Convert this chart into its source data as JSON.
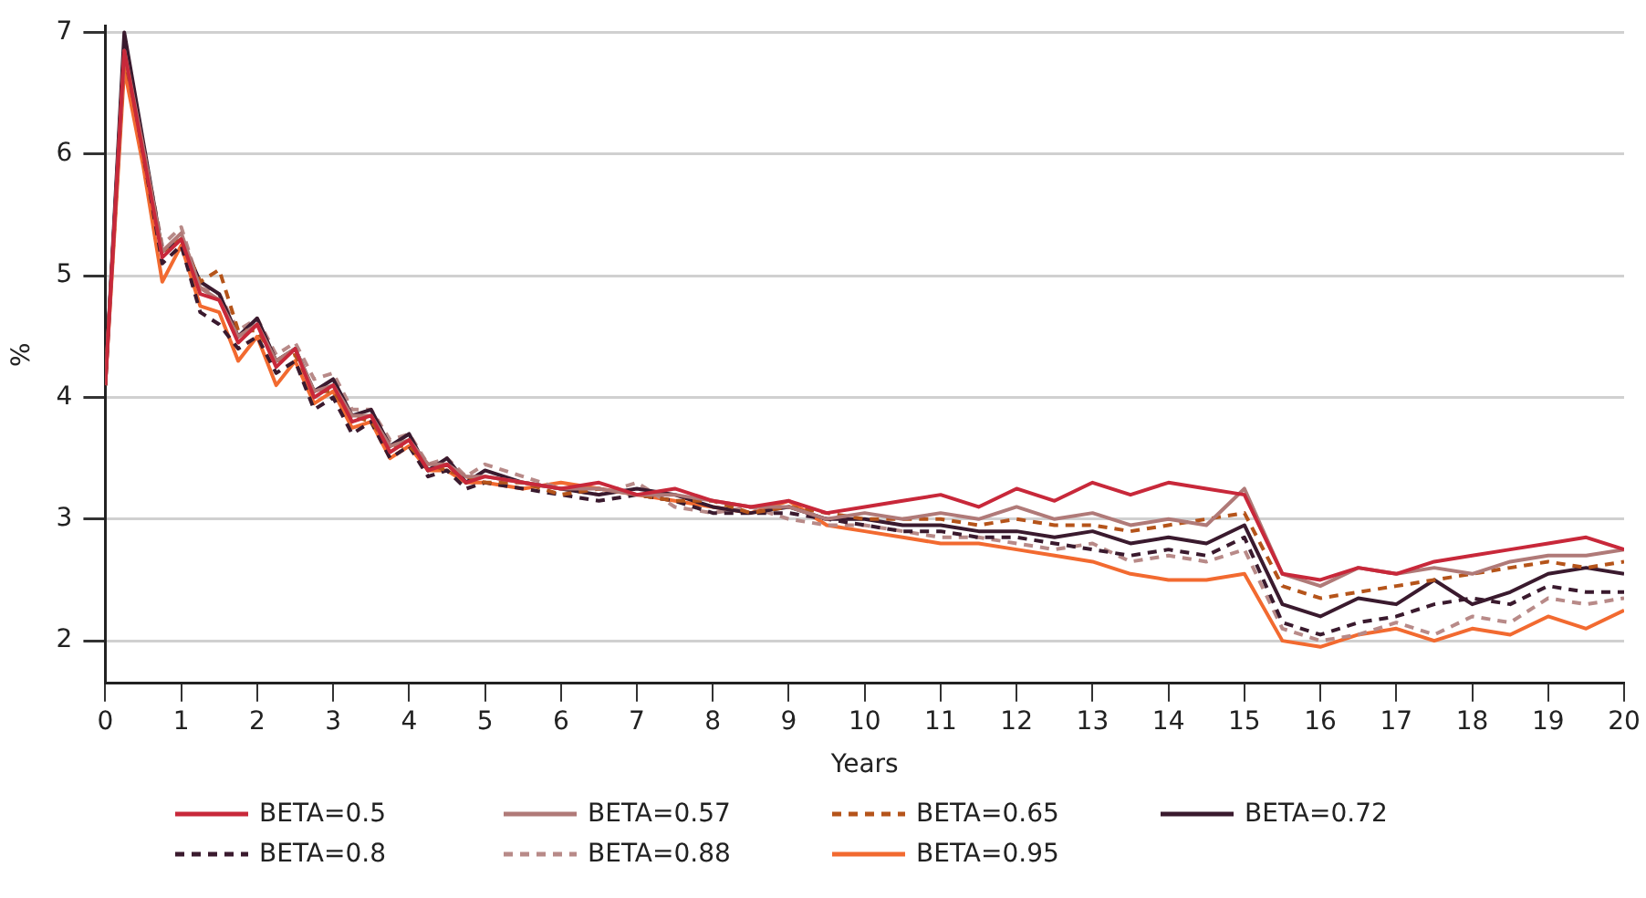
{
  "chart_data": {
    "type": "line",
    "xlabel": "Years",
    "ylabel": "%",
    "x": [
      0,
      0.25,
      0.5,
      0.75,
      1,
      1.25,
      1.5,
      1.75,
      2,
      2.25,
      2.5,
      2.75,
      3,
      3.25,
      3.5,
      3.75,
      4,
      4.25,
      4.5,
      4.75,
      5,
      5.5,
      6,
      6.5,
      7,
      7.5,
      8,
      8.5,
      9,
      9.5,
      10,
      10.5,
      11,
      11.5,
      12,
      12.5,
      13,
      13.5,
      14,
      14.5,
      15,
      15.5,
      16,
      16.5,
      17,
      17.5,
      18,
      18.5,
      19,
      19.5,
      20
    ],
    "xlim": [
      0,
      20
    ],
    "xticks": [
      0,
      1,
      2,
      3,
      4,
      5,
      6,
      7,
      8,
      9,
      10,
      11,
      12,
      13,
      14,
      15,
      16,
      17,
      18,
      19,
      20
    ],
    "ylim": [
      1.65,
      7.05
    ],
    "yticks": [
      2,
      3,
      4,
      5,
      6,
      7
    ],
    "grid": "y",
    "legend": "bottom",
    "marker": "none",
    "series": [
      {
        "name": "BETA=0.5",
        "color": "#c8283a",
        "line_style": "solid",
        "values": [
          4.1,
          6.85,
          6.0,
          5.15,
          5.3,
          4.85,
          4.8,
          4.45,
          4.6,
          4.25,
          4.4,
          4.0,
          4.1,
          3.8,
          3.85,
          3.55,
          3.65,
          3.4,
          3.45,
          3.3,
          3.35,
          3.3,
          3.25,
          3.3,
          3.2,
          3.25,
          3.15,
          3.1,
          3.15,
          3.05,
          3.1,
          3.15,
          3.2,
          3.1,
          3.25,
          3.15,
          3.3,
          3.2,
          3.3,
          3.25,
          3.2,
          2.55,
          2.5,
          2.6,
          2.55,
          2.65,
          2.7,
          2.75,
          2.8,
          2.85,
          2.75
        ]
      },
      {
        "name": "BETA=0.57",
        "color": "#b07a78",
        "line_style": "solid",
        "values": [
          4.1,
          6.85,
          6.05,
          5.2,
          5.35,
          4.9,
          4.8,
          4.5,
          4.6,
          4.3,
          4.4,
          4.05,
          4.1,
          3.85,
          3.85,
          3.6,
          3.65,
          3.45,
          3.45,
          3.35,
          3.35,
          3.3,
          3.25,
          3.25,
          3.2,
          3.2,
          3.15,
          3.1,
          3.1,
          3.0,
          3.05,
          3.0,
          3.05,
          3.0,
          3.1,
          3.0,
          3.05,
          2.95,
          3.0,
          2.95,
          3.25,
          2.55,
          2.45,
          2.6,
          2.55,
          2.6,
          2.55,
          2.65,
          2.7,
          2.7,
          2.75
        ]
      },
      {
        "name": "BETA=0.65",
        "color": "#b5541a",
        "line_style": "dashed",
        "values": [
          4.1,
          6.8,
          6.05,
          5.2,
          5.3,
          4.95,
          5.05,
          4.55,
          4.55,
          4.3,
          4.35,
          4.05,
          4.05,
          3.85,
          3.8,
          3.6,
          3.6,
          3.45,
          3.4,
          3.35,
          3.3,
          3.3,
          3.2,
          3.25,
          3.2,
          3.15,
          3.15,
          3.05,
          3.1,
          3.05,
          3.0,
          3.0,
          3.0,
          2.95,
          3.0,
          2.95,
          2.95,
          2.9,
          2.95,
          3.0,
          3.05,
          2.45,
          2.35,
          2.4,
          2.45,
          2.5,
          2.55,
          2.6,
          2.65,
          2.6,
          2.65
        ]
      },
      {
        "name": "BETA=0.72",
        "color": "#3a1a2e",
        "line_style": "solid",
        "values": [
          4.1,
          7.0,
          6.1,
          5.2,
          5.3,
          4.95,
          4.85,
          4.5,
          4.65,
          4.3,
          4.4,
          4.05,
          4.15,
          3.85,
          3.9,
          3.6,
          3.7,
          3.4,
          3.5,
          3.3,
          3.4,
          3.3,
          3.25,
          3.2,
          3.25,
          3.2,
          3.1,
          3.05,
          3.1,
          3.0,
          3.0,
          2.95,
          2.95,
          2.9,
          2.9,
          2.85,
          2.9,
          2.8,
          2.85,
          2.8,
          2.95,
          2.3,
          2.2,
          2.35,
          2.3,
          2.5,
          2.3,
          2.4,
          2.55,
          2.6,
          2.55
        ]
      },
      {
        "name": "BETA=0.8",
        "color": "#3a1a2e",
        "line_style": "dashed",
        "values": [
          4.1,
          6.9,
          6.0,
          5.1,
          5.25,
          4.7,
          4.6,
          4.4,
          4.5,
          4.2,
          4.3,
          3.9,
          4.0,
          3.7,
          3.8,
          3.5,
          3.6,
          3.35,
          3.4,
          3.25,
          3.3,
          3.25,
          3.2,
          3.15,
          3.2,
          3.15,
          3.05,
          3.05,
          3.05,
          3.0,
          2.95,
          2.9,
          2.9,
          2.85,
          2.85,
          2.8,
          2.75,
          2.7,
          2.75,
          2.7,
          2.85,
          2.15,
          2.05,
          2.15,
          2.2,
          2.3,
          2.35,
          2.3,
          2.45,
          2.4,
          2.4
        ]
      },
      {
        "name": "BETA=0.88",
        "color": "#b88a88",
        "line_style": "dashed",
        "values": [
          4.1,
          6.85,
          6.05,
          5.25,
          5.4,
          4.9,
          4.85,
          4.55,
          4.65,
          4.35,
          4.45,
          4.15,
          4.2,
          3.9,
          3.9,
          3.65,
          3.7,
          3.45,
          3.5,
          3.35,
          3.45,
          3.35,
          3.25,
          3.2,
          3.3,
          3.1,
          3.05,
          3.1,
          3.0,
          2.95,
          2.95,
          2.9,
          2.85,
          2.85,
          2.8,
          2.75,
          2.8,
          2.65,
          2.7,
          2.65,
          2.75,
          2.1,
          2.0,
          2.05,
          2.15,
          2.05,
          2.2,
          2.15,
          2.35,
          2.3,
          2.35
        ]
      },
      {
        "name": "BETA=0.95",
        "color": "#f26a30",
        "line_style": "solid",
        "values": [
          4.1,
          6.7,
          5.9,
          4.95,
          5.25,
          4.75,
          4.7,
          4.3,
          4.5,
          4.1,
          4.3,
          3.95,
          4.05,
          3.75,
          3.8,
          3.5,
          3.6,
          3.4,
          3.4,
          3.3,
          3.3,
          3.25,
          3.3,
          3.25,
          3.2,
          3.15,
          3.1,
          3.05,
          3.15,
          2.95,
          2.9,
          2.85,
          2.8,
          2.8,
          2.75,
          2.7,
          2.65,
          2.55,
          2.5,
          2.5,
          2.55,
          2.0,
          1.95,
          2.05,
          2.1,
          2.0,
          2.1,
          2.05,
          2.2,
          2.1,
          2.25
        ]
      }
    ]
  }
}
